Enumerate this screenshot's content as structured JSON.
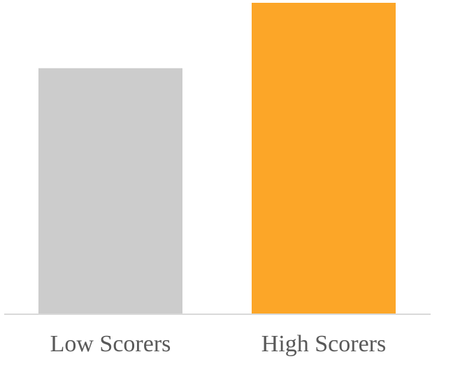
{
  "chart_data": {
    "type": "bar",
    "categories": [
      "Low Scorers",
      "High Scorers"
    ],
    "values": [
      79,
      100
    ],
    "colors": [
      "#cccccc",
      "#fca628"
    ],
    "axis_color": "#d9d9d9",
    "label_color": "#595959",
    "ylim": [
      0,
      100
    ],
    "grid": false,
    "legend": "none"
  }
}
